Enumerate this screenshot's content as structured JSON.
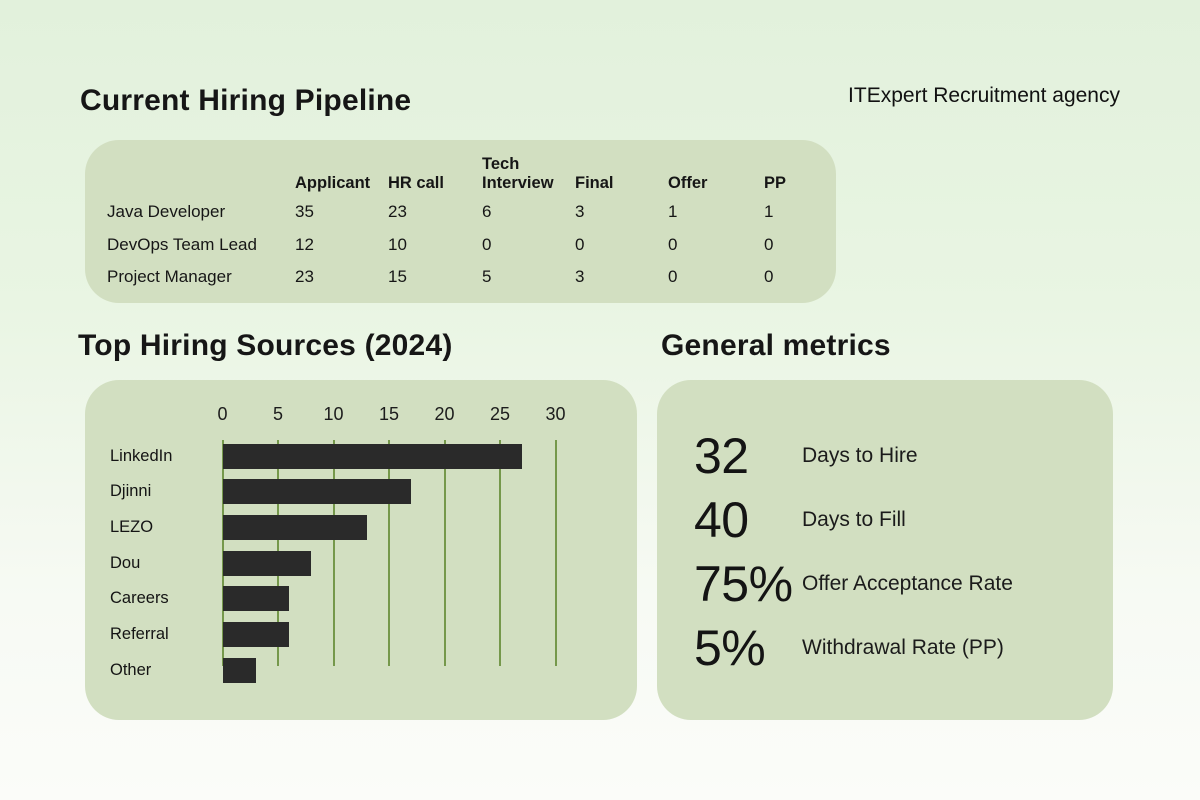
{
  "header": {
    "title": "Current Hiring Pipeline",
    "agency": "ITExpert Recruitment agency"
  },
  "sources_section_title": "Top Hiring Sources (2024)",
  "metrics_section": {
    "title": "General metrics",
    "items": [
      {
        "value": "32",
        "label": "Days to Hire"
      },
      {
        "value": "40",
        "label": "Days to Fill"
      },
      {
        "value": "75%",
        "label": "Offer Acceptance Rate"
      },
      {
        "value": "5%",
        "label": "Withdrawal Rate (PP)"
      }
    ]
  },
  "chart_data": [
    {
      "type": "table",
      "title": "Current Hiring Pipeline",
      "columns": [
        "Applicant",
        "HR call",
        "Tech\nInterview",
        "Final",
        "Offer",
        "PP"
      ],
      "rows": [
        {
          "label": "Java Developer",
          "values": [
            35,
            23,
            6,
            3,
            1,
            1
          ]
        },
        {
          "label": "DevOps Team Lead",
          "values": [
            12,
            10,
            0,
            0,
            0,
            0
          ]
        },
        {
          "label": "Project Manager",
          "values": [
            23,
            15,
            5,
            3,
            0,
            0
          ]
        }
      ]
    },
    {
      "type": "bar",
      "orientation": "horizontal",
      "title": "Top Hiring Sources (2024)",
      "categories": [
        "LinkedIn",
        "Djinni",
        "LEZO",
        "Dou",
        "Careers",
        "Referral",
        "Other"
      ],
      "values": [
        27,
        17,
        13,
        8,
        6,
        6,
        3
      ],
      "xlim": [
        0,
        30
      ],
      "xticks": [
        0,
        5,
        10,
        15,
        20,
        25,
        30
      ],
      "grid": "vertical-gridlines",
      "legend": "none"
    }
  ],
  "style": {
    "card_bg": "#d2dfc1",
    "bar_color": "#2a2a2a",
    "gridline_color": "#75984b",
    "background_top": "#e2f1dc",
    "background_bottom": "#fbfcf9",
    "text_color": "#161616"
  }
}
